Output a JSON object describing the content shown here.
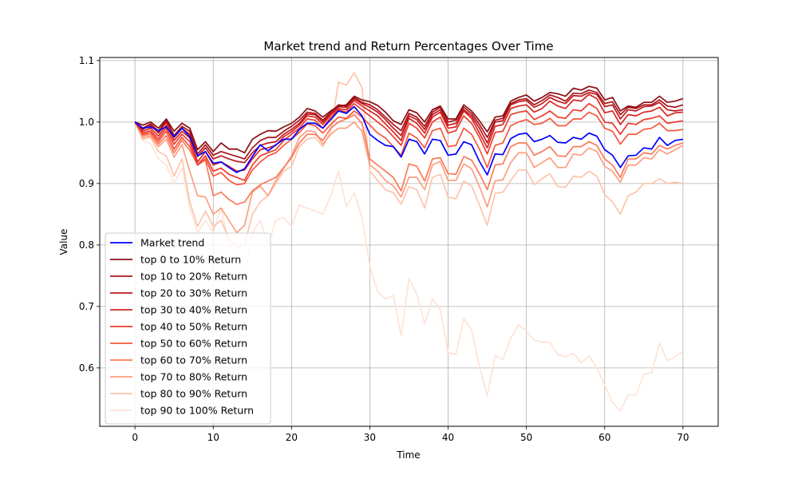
{
  "chart_data": {
    "type": "line",
    "title": "Market trend and Return Percentages Over Time",
    "xlabel": "Time",
    "ylabel": "Value",
    "xlim": [
      -4.5,
      74.5
    ],
    "ylim": [
      0.505,
      1.105
    ],
    "xticks": [
      0,
      10,
      20,
      30,
      40,
      50,
      60,
      70
    ],
    "yticks": [
      0.6,
      0.7,
      0.8,
      0.9,
      1.0,
      1.1
    ],
    "ytick_labels": [
      "0.6",
      "0.7",
      "0.8",
      "0.9",
      "1.0",
      "1.1"
    ],
    "grid": true,
    "legend_position": "lower-left",
    "series": [
      {
        "name": "Market trend",
        "color": "#0000ff",
        "width": 1.7,
        "values": [
          1.0,
          0.99,
          0.992,
          0.986,
          0.992,
          0.976,
          0.99,
          0.976,
          0.945,
          0.952,
          0.933,
          0.935,
          0.926,
          0.918,
          0.924,
          0.944,
          0.963,
          0.953,
          0.963,
          0.972,
          0.972,
          0.988,
          0.998,
          0.998,
          0.99,
          1.004,
          1.018,
          1.014,
          1.025,
          1.01,
          0.98,
          0.97,
          0.962,
          0.96,
          0.943,
          0.972,
          0.968,
          0.948,
          0.972,
          0.97,
          0.946,
          0.948,
          0.968,
          0.963,
          0.936,
          0.914,
          0.948,
          0.947,
          0.973,
          0.98,
          0.982,
          0.968,
          0.972,
          0.978,
          0.967,
          0.966,
          0.975,
          0.972,
          0.982,
          0.977,
          0.955,
          0.946,
          0.926,
          0.945,
          0.946,
          0.958,
          0.956,
          0.975,
          0.962,
          0.97,
          0.972
        ]
      },
      {
        "name": "top 0 to 10% Return",
        "color": "#8b0e13",
        "width": 1.7,
        "values": [
          1.0,
          0.995,
          1.0,
          0.99,
          1.005,
          0.985,
          0.998,
          0.99,
          0.955,
          0.968,
          0.952,
          0.966,
          0.956,
          0.956,
          0.95,
          0.972,
          0.98,
          0.986,
          0.985,
          0.992,
          0.998,
          1.008,
          1.022,
          1.018,
          1.008,
          1.018,
          1.026,
          1.028,
          1.042,
          1.036,
          1.033,
          1.027,
          1.016,
          1.002,
          0.996,
          1.02,
          1.015,
          1.0,
          1.02,
          1.026,
          1.005,
          1.005,
          1.028,
          1.018,
          1.002,
          0.984,
          1.008,
          1.01,
          1.034,
          1.04,
          1.044,
          1.034,
          1.04,
          1.048,
          1.046,
          1.042,
          1.055,
          1.052,
          1.058,
          1.055,
          1.036,
          1.04,
          1.018,
          1.026,
          1.024,
          1.032,
          1.032,
          1.042,
          1.032,
          1.034,
          1.038
        ]
      },
      {
        "name": "top 10 to 20% Return",
        "color": "#a81519",
        "width": 1.7,
        "values": [
          1.0,
          0.99,
          0.997,
          0.985,
          1.003,
          0.978,
          0.993,
          0.985,
          0.948,
          0.963,
          0.946,
          0.952,
          0.948,
          0.944,
          0.94,
          0.958,
          0.97,
          0.975,
          0.975,
          0.985,
          0.993,
          1.003,
          1.016,
          1.014,
          1.003,
          1.016,
          1.028,
          1.026,
          1.04,
          1.032,
          1.028,
          1.02,
          1.008,
          0.996,
          0.986,
          1.014,
          1.008,
          0.993,
          1.016,
          1.024,
          1.0,
          1.003,
          1.024,
          1.014,
          0.996,
          0.975,
          1.003,
          1.006,
          1.03,
          1.036,
          1.038,
          1.028,
          1.035,
          1.044,
          1.04,
          1.034,
          1.047,
          1.046,
          1.052,
          1.048,
          1.03,
          1.033,
          1.012,
          1.024,
          1.022,
          1.028,
          1.028,
          1.036,
          1.026,
          1.024,
          1.028
        ]
      },
      {
        "name": "top 20 to 30% Return",
        "color": "#c0171f",
        "width": 1.7,
        "values": [
          1.0,
          0.988,
          0.995,
          0.982,
          1.0,
          0.975,
          0.99,
          0.98,
          0.944,
          0.958,
          0.94,
          0.945,
          0.94,
          0.936,
          0.934,
          0.95,
          0.962,
          0.966,
          0.968,
          0.98,
          0.988,
          0.998,
          1.013,
          1.012,
          1.0,
          1.014,
          1.025,
          1.024,
          1.038,
          1.03,
          1.024,
          1.016,
          1.004,
          0.99,
          0.978,
          1.01,
          1.004,
          0.988,
          1.012,
          1.02,
          0.995,
          0.998,
          1.02,
          1.01,
          0.99,
          0.966,
          1.0,
          1.002,
          1.028,
          1.033,
          1.035,
          1.024,
          1.03,
          1.04,
          1.034,
          1.03,
          1.043,
          1.042,
          1.048,
          1.045,
          1.025,
          1.028,
          1.005,
          1.02,
          1.018,
          1.025,
          1.026,
          1.032,
          1.02,
          1.018,
          1.02
        ]
      },
      {
        "name": "top 30 to 40% Return",
        "color": "#d92523",
        "width": 1.7,
        "values": [
          1.0,
          0.985,
          0.99,
          0.977,
          0.995,
          0.97,
          0.985,
          0.974,
          0.935,
          0.952,
          0.93,
          0.935,
          0.928,
          0.92,
          0.922,
          0.94,
          0.955,
          0.958,
          0.962,
          0.976,
          0.984,
          0.995,
          1.01,
          1.008,
          0.996,
          1.012,
          1.022,
          1.02,
          1.035,
          1.026,
          1.018,
          1.01,
          0.997,
          0.984,
          0.97,
          1.006,
          0.998,
          0.982,
          1.008,
          1.016,
          0.99,
          0.992,
          1.018,
          1.006,
          0.982,
          0.958,
          0.993,
          0.996,
          1.022,
          1.026,
          1.028,
          1.016,
          1.022,
          1.034,
          1.026,
          1.022,
          1.036,
          1.034,
          1.045,
          1.038,
          1.015,
          1.018,
          0.996,
          1.012,
          1.01,
          1.016,
          1.018,
          1.024,
          1.01,
          1.015,
          1.016
        ]
      },
      {
        "name": "top 40 to 50% Return",
        "color": "#ec3c2e",
        "width": 1.7,
        "values": [
          1.0,
          0.982,
          0.986,
          0.972,
          0.99,
          0.964,
          0.98,
          0.968,
          0.93,
          0.945,
          0.92,
          0.925,
          0.915,
          0.91,
          0.905,
          0.93,
          0.945,
          0.95,
          0.955,
          0.97,
          0.98,
          0.99,
          1.005,
          1.003,
          0.99,
          1.008,
          1.02,
          1.016,
          1.03,
          1.02,
          1.01,
          1.0,
          0.99,
          0.976,
          0.962,
          0.998,
          0.99,
          0.974,
          1.0,
          1.008,
          0.982,
          0.986,
          1.01,
          0.998,
          0.975,
          0.948,
          0.983,
          0.985,
          1.012,
          1.016,
          1.018,
          1.004,
          1.01,
          1.018,
          1.008,
          1.006,
          1.02,
          1.018,
          1.03,
          1.022,
          1.0,
          0.998,
          0.98,
          0.998,
          0.996,
          1.004,
          1.006,
          1.01,
          0.998,
          1.0,
          1.002
        ]
      },
      {
        "name": "top 50 to 60% Return",
        "color": "#f6573e",
        "width": 1.7,
        "values": [
          1.0,
          0.98,
          0.983,
          0.968,
          0.985,
          0.956,
          0.975,
          0.96,
          0.93,
          0.94,
          0.912,
          0.918,
          0.905,
          0.898,
          0.9,
          0.922,
          0.935,
          0.945,
          0.95,
          0.962,
          0.972,
          0.983,
          0.997,
          0.994,
          0.982,
          0.996,
          1.008,
          1.006,
          1.018,
          1.008,
          0.995,
          0.982,
          0.974,
          0.96,
          0.946,
          0.982,
          0.974,
          0.958,
          0.986,
          0.99,
          0.96,
          0.962,
          0.99,
          0.98,
          0.956,
          0.926,
          0.962,
          0.966,
          0.994,
          1.0,
          1.004,
          0.996,
          0.998,
          1.006,
          0.994,
          0.994,
          1.005,
          1.005,
          1.016,
          1.01,
          0.99,
          0.985,
          0.964,
          0.98,
          0.98,
          0.988,
          0.99,
          0.998,
          0.986,
          0.986,
          0.988
        ]
      },
      {
        "name": "top 60 to 70% Return",
        "color": "#fb7a5a",
        "width": 1.7,
        "values": [
          1.0,
          0.978,
          0.98,
          0.964,
          0.978,
          0.95,
          0.97,
          0.954,
          0.93,
          0.938,
          0.88,
          0.886,
          0.874,
          0.866,
          0.87,
          0.888,
          0.898,
          0.904,
          0.91,
          0.926,
          0.942,
          0.966,
          0.98,
          0.98,
          0.97,
          0.99,
          1.0,
          1.005,
          1.012,
          0.998,
          0.94,
          0.93,
          0.92,
          0.91,
          0.888,
          0.932,
          0.928,
          0.904,
          0.94,
          0.942,
          0.916,
          0.915,
          0.944,
          0.938,
          0.916,
          0.89,
          0.93,
          0.932,
          0.96,
          0.966,
          0.966,
          0.946,
          0.952,
          0.96,
          0.945,
          0.944,
          0.96,
          0.96,
          0.968,
          0.962,
          0.94,
          0.93,
          0.91,
          0.94,
          0.94,
          0.95,
          0.948,
          0.962,
          0.956,
          0.962,
          0.966
        ]
      },
      {
        "name": "top 70 to 80% Return",
        "color": "#fc9f81",
        "width": 1.7,
        "values": [
          1.0,
          0.975,
          0.977,
          0.96,
          0.972,
          0.943,
          0.963,
          0.92,
          0.88,
          0.878,
          0.85,
          0.86,
          0.84,
          0.82,
          0.832,
          0.886,
          0.896,
          0.88,
          0.905,
          0.925,
          0.945,
          0.975,
          0.986,
          0.984,
          0.964,
          0.98,
          0.99,
          0.99,
          1.0,
          0.985,
          0.93,
          0.92,
          0.905,
          0.896,
          0.878,
          0.91,
          0.91,
          0.89,
          0.93,
          0.936,
          0.905,
          0.905,
          0.932,
          0.924,
          0.895,
          0.862,
          0.904,
          0.906,
          0.934,
          0.95,
          0.95,
          0.926,
          0.934,
          0.942,
          0.926,
          0.926,
          0.948,
          0.946,
          0.958,
          0.952,
          0.928,
          0.92,
          0.902,
          0.93,
          0.93,
          0.942,
          0.94,
          0.955,
          0.948,
          0.955,
          0.962
        ]
      },
      {
        "name": "top 80 to 90% Return",
        "color": "#fdc4ab",
        "width": 1.7,
        "values": [
          1.0,
          0.972,
          0.975,
          0.952,
          0.945,
          0.912,
          0.94,
          0.87,
          0.83,
          0.855,
          0.83,
          0.84,
          0.81,
          0.795,
          0.8,
          0.85,
          0.87,
          0.88,
          0.9,
          0.92,
          0.928,
          0.96,
          0.972,
          0.975,
          0.96,
          0.985,
          1.065,
          1.06,
          1.08,
          1.056,
          0.92,
          0.905,
          0.89,
          0.885,
          0.866,
          0.895,
          0.89,
          0.86,
          0.91,
          0.915,
          0.878,
          0.875,
          0.904,
          0.896,
          0.865,
          0.832,
          0.884,
          0.886,
          0.905,
          0.922,
          0.922,
          0.898,
          0.908,
          0.916,
          0.895,
          0.894,
          0.912,
          0.91,
          0.92,
          0.912,
          0.882,
          0.87,
          0.85,
          0.88,
          0.886,
          0.9,
          0.9,
          0.908,
          0.9,
          0.902,
          0.9
        ]
      },
      {
        "name": "top 90 to 100% Return",
        "color": "#fee3d6",
        "width": 1.7,
        "values": [
          1.0,
          0.97,
          0.965,
          0.94,
          0.93,
          0.9,
          0.925,
          0.86,
          0.82,
          0.84,
          0.82,
          0.86,
          0.8,
          0.78,
          0.75,
          0.82,
          0.84,
          0.8,
          0.84,
          0.845,
          0.83,
          0.865,
          0.86,
          0.855,
          0.85,
          0.88,
          0.92,
          0.862,
          0.885,
          0.845,
          0.765,
          0.724,
          0.712,
          0.718,
          0.653,
          0.745,
          0.72,
          0.672,
          0.712,
          0.695,
          0.625,
          0.622,
          0.68,
          0.662,
          0.602,
          0.555,
          0.62,
          0.614,
          0.648,
          0.67,
          0.66,
          0.645,
          0.642,
          0.642,
          0.622,
          0.618,
          0.624,
          0.608,
          0.62,
          0.6,
          0.572,
          0.544,
          0.53,
          0.556,
          0.556,
          0.59,
          0.592,
          0.64,
          0.612,
          0.618,
          0.628
        ]
      }
    ]
  }
}
